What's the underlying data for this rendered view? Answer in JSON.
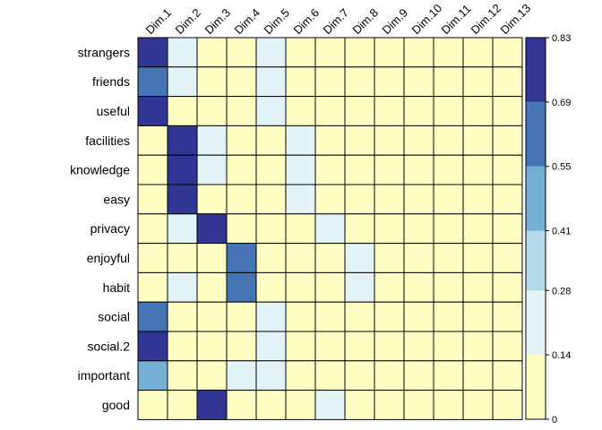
{
  "chart_data": {
    "type": "heatmap",
    "title": "",
    "columns": [
      "Dim.1",
      "Dim.2",
      "Dim.3",
      "Dim.4",
      "Dim.5",
      "Dim.6",
      "Dim.7",
      "Dim.8",
      "Dim.9",
      "Dim.10",
      "Dim.11",
      "Dim.12",
      "Dim.13"
    ],
    "rows": [
      "strangers",
      "friends",
      "useful",
      "facilities",
      "knowledge",
      "easy",
      "privacy",
      "enjoyful",
      "habit",
      "social",
      "social.2",
      "important",
      "good"
    ],
    "values": [
      [
        0.76,
        0.2,
        0.05,
        0.05,
        0.18,
        0.05,
        0.05,
        0.05,
        0.05,
        0.05,
        0.05,
        0.05,
        0.05
      ],
      [
        0.62,
        0.2,
        0.05,
        0.05,
        0.18,
        0.05,
        0.05,
        0.05,
        0.05,
        0.05,
        0.05,
        0.05,
        0.05
      ],
      [
        0.76,
        0.05,
        0.05,
        0.05,
        0.18,
        0.05,
        0.05,
        0.05,
        0.05,
        0.05,
        0.05,
        0.05,
        0.05
      ],
      [
        0.05,
        0.76,
        0.2,
        0.05,
        0.05,
        0.18,
        0.05,
        0.05,
        0.05,
        0.05,
        0.05,
        0.05,
        0.05
      ],
      [
        0.05,
        0.76,
        0.2,
        0.05,
        0.05,
        0.18,
        0.05,
        0.05,
        0.05,
        0.05,
        0.05,
        0.05,
        0.05
      ],
      [
        0.05,
        0.76,
        0.05,
        0.05,
        0.05,
        0.18,
        0.05,
        0.05,
        0.05,
        0.05,
        0.05,
        0.05,
        0.05
      ],
      [
        0.05,
        0.2,
        0.76,
        0.05,
        0.05,
        0.05,
        0.18,
        0.05,
        0.05,
        0.05,
        0.05,
        0.05,
        0.05
      ],
      [
        0.05,
        0.05,
        0.05,
        0.62,
        0.05,
        0.05,
        0.05,
        0.18,
        0.05,
        0.05,
        0.05,
        0.05,
        0.05
      ],
      [
        0.05,
        0.2,
        0.05,
        0.62,
        0.05,
        0.05,
        0.05,
        0.18,
        0.05,
        0.05,
        0.05,
        0.05,
        0.05
      ],
      [
        0.62,
        0.05,
        0.05,
        0.05,
        0.18,
        0.05,
        0.05,
        0.05,
        0.05,
        0.05,
        0.05,
        0.05,
        0.05
      ],
      [
        0.76,
        0.05,
        0.05,
        0.05,
        0.18,
        0.05,
        0.05,
        0.05,
        0.05,
        0.05,
        0.05,
        0.05,
        0.05
      ],
      [
        0.48,
        0.05,
        0.05,
        0.18,
        0.18,
        0.05,
        0.05,
        0.05,
        0.05,
        0.05,
        0.05,
        0.05,
        0.05
      ],
      [
        0.05,
        0.05,
        0.76,
        0.05,
        0.05,
        0.05,
        0.18,
        0.05,
        0.05,
        0.05,
        0.05,
        0.05,
        0.05
      ]
    ],
    "colorbar": {
      "ticks": [
        "0",
        "0.14",
        "0.28",
        "0.41",
        "0.55",
        "0.69",
        "0.83"
      ],
      "min": 0,
      "max": 0.83,
      "colors": [
        "#FFFFC4",
        "#E3F4F8",
        "#B2DAEA",
        "#74AED4",
        "#4575B4",
        "#313695"
      ]
    },
    "grid": true,
    "legend_position": "right"
  }
}
